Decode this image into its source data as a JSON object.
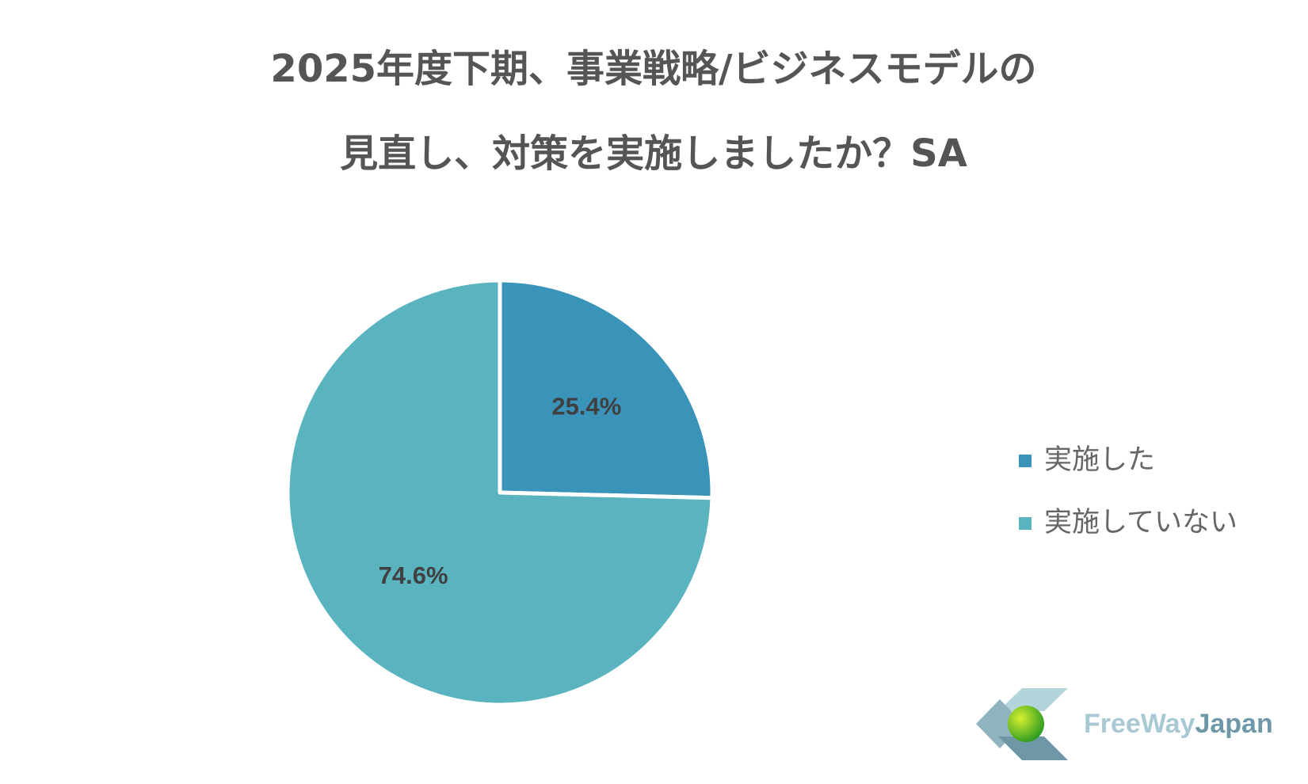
{
  "chart_data": {
    "type": "pie",
    "title": [
      "2025年度下期、事業戦略/ビジネスモデルの",
      "見直し、対策を実施しましたか？SA"
    ],
    "categories": [
      "実施した",
      "実施していない"
    ],
    "values": [
      25.4,
      74.6
    ],
    "value_labels": [
      "25.4%",
      "74.6%"
    ],
    "colors": [
      "#3a93b9",
      "#5ab4c0"
    ],
    "legend": "right"
  },
  "logo": {
    "text_1": "FreeWay",
    "text_2": "Japan"
  }
}
